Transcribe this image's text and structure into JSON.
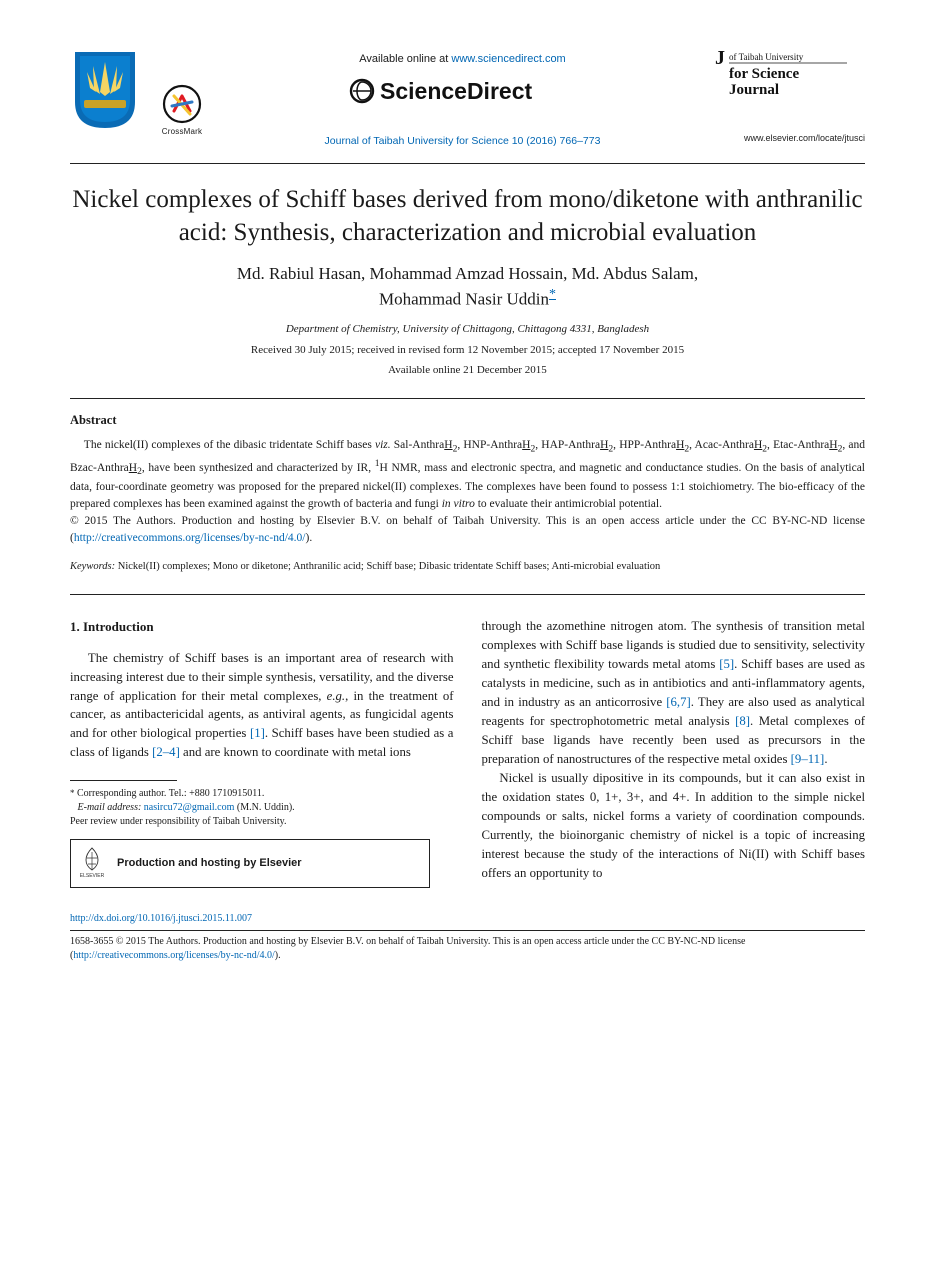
{
  "header": {
    "available_prefix": "Available online at ",
    "available_url": "www.sciencedirect.com",
    "journal_ref": "Journal of Taibah University for Science 10 (2016) 766–773",
    "locate_url": "www.elsevier.com/locate/jtusci",
    "crossmark_label": "CrossMark"
  },
  "title": "Nickel complexes of Schiff bases derived from mono/diketone with anthranilic acid: Synthesis, characterization and microbial evaluation",
  "authors_line1": "Md. Rabiul Hasan, Mohammad Amzad Hossain, Md. Abdus Salam,",
  "authors_line2": "Mohammad Nasir Uddin",
  "corr_mark": "*",
  "affiliation": "Department of Chemistry, University of Chittagong, Chittagong 4331, Bangladesh",
  "dates_line1": "Received 30 July 2015; received in revised form 12 November 2015; accepted 17 November 2015",
  "dates_line2": "Available online 21 December 2015",
  "abstract": {
    "heading": "Abstract",
    "body_html": "The nickel(II) complexes of the dibasic tridentate Schiff bases <i>viz.</i> Sal-Anthra<u>H</u><sub>2</sub>, HNP-Anthra<u>H</u><sub>2</sub>, HAP-Anthra<u>H</u><sub>2</sub>, HPP-Anthra<u>H</u><sub>2</sub>, Acac-Anthra<u>H</u><sub>2</sub>, Etac-Anthra<u>H</u><sub>2</sub>, and Bzac-Anthra<u>H</u><sub>2</sub>, have been synthesized and characterized by IR, <sup>1</sup>H NMR, mass and electronic spectra, and magnetic and conductance studies. On the basis of analytical data, four-coordinate geometry was proposed for the prepared nickel(II) complexes. The complexes have been found to possess 1:1 stoichiometry. The bio-efficacy of the prepared complexes has been examined against the growth of bacteria and fungi <i>in vitro</i> to evaluate their antimicrobial potential.",
    "copyright": "© 2015 The Authors. Production and hosting by Elsevier B.V. on behalf of Taibah University. This is an open access article under the CC BY-NC-ND license (",
    "license_url": "http://creativecommons.org/licenses/by-nc-nd/4.0/",
    "close_paren": ")."
  },
  "keywords": {
    "label": "Keywords:",
    "text": " Nickel(II) complexes; Mono or diketone; Anthranilic acid; Schiff base; Dibasic tridentate Schiff bases; Anti-microbial evaluation"
  },
  "section1": {
    "heading": "1.  Introduction",
    "left_p1_a": "The chemistry of Schiff bases is an important area of research with increasing interest due to their simple synthesis, versatility, and the diverse range of application for their metal complexes, ",
    "left_p1_eg": "e.g.",
    "left_p1_b": ", in the treatment of cancer, as antibactericidal agents, as antiviral agents, as fungicidal agents and for other biological properties ",
    "ref1": "[1]",
    "left_p1_c": ". Schiff bases have been studied as a class of ligands ",
    "ref24": "[2–4]",
    "left_p1_d": " and are known to coordinate with metal ions",
    "right_p1_a": "through the azomethine nitrogen atom. The synthesis of transition metal complexes with Schiff base ligands is studied due to sensitivity, selectivity and synthetic flexibility towards metal atoms ",
    "ref5": "[5]",
    "right_p1_b": ". Schiff bases are used as catalysts in medicine, such as in antibiotics and anti-inflammatory agents, and in industry as an anticorrosive ",
    "ref67": "[6,7]",
    "right_p1_c": ". They are also used as analytical reagents for spectrophotometric metal analysis ",
    "ref8": "[8]",
    "right_p1_d": ". Metal complexes of Schiff base ligands have recently been used as precursors in the preparation of nanostructures of the respective metal oxides ",
    "ref911": "[9–11]",
    "right_p1_e": ".",
    "right_p2": "Nickel is usually dipositive in its compounds, but it can also exist in the oxidation states 0, 1+, 3+, and 4+. In addition to the simple nickel compounds or salts, nickel forms a variety of coordination compounds. Currently, the bioinorganic chemistry of nickel is a topic of increasing interest because the study of the interactions of Ni(II) with Schiff bases offers an opportunity to"
  },
  "footnotes": {
    "corr_text": " Corresponding author. Tel.: +880 1710915011.",
    "email_label": "E-mail address:",
    "email": "nasircu72@gmail.com",
    "email_paren": " (M.N. Uddin).",
    "peer": "Peer review under responsibility of Taibah University.",
    "hosting_text": "Production and hosting by Elsevier"
  },
  "bottom": {
    "doi": "http://dx.doi.org/10.1016/j.jtusci.2015.11.007",
    "issn_line": "1658-3655 © 2015 The Authors. Production and hosting by Elsevier B.V. on behalf of Taibah University. This is an open access article under the CC BY-NC-ND license (",
    "license_url": "http://creativecommons.org/licenses/by-nc-nd/4.0/",
    "close_paren": ")."
  },
  "colors": {
    "link": "#0066b3",
    "text": "#1a1a1a",
    "crest_blue": "#0a6bb5",
    "crest_gold": "#c9a227",
    "elsevier_orange": "#ed7224"
  }
}
